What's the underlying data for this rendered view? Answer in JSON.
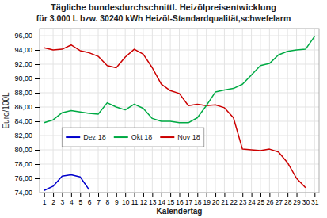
{
  "chart_data": {
    "type": "line",
    "title": "Tägliche bundesdurchschnittl. Heizölpreisentwicklung",
    "subtitle": "für 3.000 L bzw. 30240 kWh Heizöl-Standardqualität,schwefelarm",
    "x_label": "Kalendertag",
    "y_label": "Euro/100L",
    "xlim": [
      0.5,
      31.5
    ],
    "xticks": [
      1,
      2,
      3,
      4,
      5,
      6,
      7,
      8,
      9,
      10,
      11,
      12,
      13,
      14,
      15,
      16,
      17,
      18,
      19,
      20,
      21,
      22,
      23,
      24,
      25,
      26,
      27,
      28,
      29,
      30,
      31
    ],
    "ylim": [
      74.0,
      97.0
    ],
    "yticks": [
      {
        "value": 74.0,
        "label": "74,00"
      },
      {
        "value": 76.0,
        "label": "76,00"
      },
      {
        "value": 78.0,
        "label": "78,00"
      },
      {
        "value": 80.0,
        "label": "80,00"
      },
      {
        "value": 82.0,
        "label": "82,00"
      },
      {
        "value": 84.0,
        "label": "84,00"
      },
      {
        "value": 86.0,
        "label": "86,00"
      },
      {
        "value": 88.0,
        "label": "88,00"
      },
      {
        "value": 90.0,
        "label": "90,00"
      },
      {
        "value": 92.0,
        "label": "92,00"
      },
      {
        "value": 94.0,
        "label": "94,00"
      },
      {
        "value": 96.0,
        "label": "96,00"
      }
    ],
    "grid": true,
    "legend": "lower left",
    "series": [
      {
        "name": "Nov 18",
        "color": "#cc0000",
        "x": [
          1,
          2,
          3,
          4,
          5,
          6,
          7,
          8,
          9,
          10,
          11,
          12,
          13,
          14,
          15,
          16,
          17,
          18,
          19,
          20,
          21,
          22,
          23,
          24,
          25,
          26,
          27,
          28,
          29,
          30
        ],
        "values": [
          94.3,
          94.0,
          94.1,
          94.7,
          93.9,
          93.6,
          93.1,
          91.8,
          91.5,
          93.0,
          94.1,
          93.4,
          91.5,
          89.2,
          88.3,
          87.9,
          86.2,
          86.4,
          86.2,
          86.3,
          85.9,
          84.5,
          80.1,
          80.0,
          79.9,
          80.1,
          79.7,
          78.2,
          76.0,
          74.7
        ]
      },
      {
        "name": "Okt 18",
        "color": "#00aa44",
        "x": [
          1,
          2,
          3,
          4,
          5,
          6,
          7,
          8,
          9,
          10,
          11,
          12,
          13,
          14,
          15,
          16,
          17,
          18,
          19,
          20,
          21,
          22,
          23,
          24,
          25,
          26,
          27,
          28,
          29,
          30,
          31
        ],
        "values": [
          83.8,
          84.2,
          85.2,
          85.5,
          85.3,
          85.1,
          85.0,
          86.6,
          86.0,
          85.6,
          86.4,
          85.8,
          84.4,
          84.0,
          84.0,
          83.8,
          83.8,
          84.5,
          86.2,
          88.1,
          88.4,
          88.6,
          89.2,
          90.5,
          91.8,
          92.1,
          93.3,
          93.8,
          94.0,
          94.1,
          95.9
        ]
      },
      {
        "name": "Dez 18",
        "color": "#0000cc",
        "x": [
          1,
          2,
          3,
          4,
          5,
          6
        ],
        "values": [
          74.3,
          74.9,
          76.3,
          76.5,
          76.2,
          74.4
        ]
      }
    ]
  }
}
